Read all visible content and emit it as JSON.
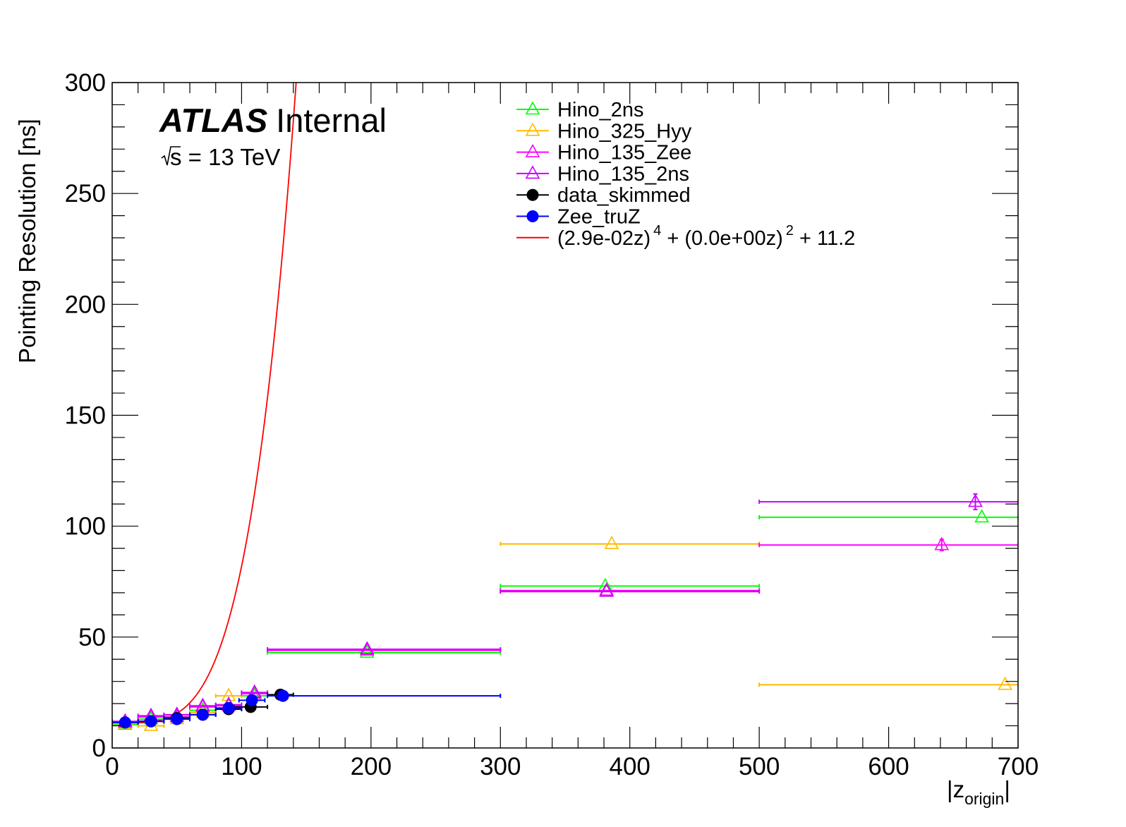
{
  "chart_data": {
    "type": "scatter",
    "title": "",
    "ylabel": "Pointing Resolution [ns]",
    "xlabel": {
      "main": "|z",
      "sub": "origin",
      "close": "|"
    },
    "xlim": [
      0,
      700
    ],
    "ylim": [
      0,
      300
    ],
    "x_ticks": [
      0,
      100,
      200,
      300,
      400,
      500,
      600,
      700
    ],
    "y_ticks": [
      0,
      50,
      100,
      150,
      200,
      250,
      300
    ],
    "x_tick_labels": [
      "0",
      "100",
      "200",
      "300",
      "400",
      "500",
      "600",
      "700"
    ],
    "y_tick_labels": [
      "0",
      "50",
      "100",
      "150",
      "200",
      "250",
      "300"
    ],
    "grid": false,
    "legend_placement": "top-center",
    "annotations": {
      "experiment": "ATLAS",
      "status": "Internal",
      "energy_sqrt": "s",
      "energy_rest": " = 13 TeV"
    },
    "series": [
      {
        "name": "Hino_2ns",
        "color": "#00ff00",
        "marker": "open-triangle",
        "points": [
          {
            "x": 10,
            "y": 10.5,
            "xerr": 10
          },
          {
            "x": 30,
            "y": 13.0,
            "xerr": 10
          },
          {
            "x": 50,
            "y": 14.8,
            "xerr": 10
          },
          {
            "x": 70,
            "y": 17.0,
            "xerr": 10
          },
          {
            "x": 90,
            "y": 19.5,
            "xerr": 10
          },
          {
            "x": 110,
            "y": 23.5,
            "xerr": 10
          },
          {
            "x": 197,
            "y": 43.0,
            "xlo": 120,
            "xhi": 300
          },
          {
            "x": 381,
            "y": 73.0,
            "xlo": 300,
            "xhi": 500
          },
          {
            "x": 672,
            "y": 104.0,
            "xlo": 500,
            "xhi": 700
          }
        ]
      },
      {
        "name": "Hino_325_Hyy",
        "color": "#ffbb00",
        "marker": "open-triangle",
        "points": [
          {
            "x": 10,
            "y": 11.0,
            "xerr": 10
          },
          {
            "x": 30,
            "y": 10.0,
            "xerr": 10
          },
          {
            "x": 50,
            "y": 13.0,
            "xerr": 10
          },
          {
            "x": 70,
            "y": 16.0,
            "xerr": 10
          },
          {
            "x": 90,
            "y": 23.5,
            "xerr": 10
          },
          {
            "x": 110,
            "y": 24.5,
            "xerr": 10
          },
          {
            "x": 386,
            "y": 92.0,
            "xlo": 300,
            "xhi": 500
          },
          {
            "x": 690,
            "y": 28.5,
            "xlo": 500,
            "xhi": 700
          }
        ]
      },
      {
        "name": "Hino_135_Zee",
        "color": "#ff00ff",
        "marker": "open-triangle",
        "points": [
          {
            "x": 10,
            "y": 11.5,
            "xerr": 10
          },
          {
            "x": 30,
            "y": 14.0,
            "xerr": 10
          },
          {
            "x": 50,
            "y": 14.0,
            "xerr": 10
          },
          {
            "x": 70,
            "y": 18.5,
            "xerr": 10
          },
          {
            "x": 90,
            "y": 19.0,
            "xerr": 10
          },
          {
            "x": 110,
            "y": 24.5,
            "xerr": 10
          },
          {
            "x": 197,
            "y": 44.0,
            "xlo": 120,
            "xhi": 300
          },
          {
            "x": 382,
            "y": 71.0,
            "xlo": 300,
            "xhi": 500
          },
          {
            "x": 641,
            "y": 91.5,
            "xlo": 500,
            "xhi": 700,
            "yerr": 2.5
          }
        ]
      },
      {
        "name": "Hino_135_2ns",
        "color": "#cc00ff",
        "marker": "open-triangle",
        "points": [
          {
            "x": 10,
            "y": 12.0,
            "xerr": 10
          },
          {
            "x": 30,
            "y": 14.5,
            "xerr": 10
          },
          {
            "x": 50,
            "y": 15.0,
            "xerr": 10
          },
          {
            "x": 70,
            "y": 19.0,
            "xerr": 10
          },
          {
            "x": 90,
            "y": 19.5,
            "xerr": 10
          },
          {
            "x": 110,
            "y": 25.0,
            "xerr": 10
          },
          {
            "x": 197,
            "y": 44.5,
            "xlo": 120,
            "xhi": 300
          },
          {
            "x": 382,
            "y": 70.5,
            "xlo": 300,
            "xhi": 500
          },
          {
            "x": 667,
            "y": 111.0,
            "xlo": 500,
            "xhi": 700,
            "yerr": 3.5
          }
        ]
      },
      {
        "name": "data_skimmed",
        "color": "#000000",
        "marker": "filled-circle",
        "points": [
          {
            "x": 10,
            "y": 11.5,
            "xerr": 10
          },
          {
            "x": 30,
            "y": 12.0,
            "xerr": 10
          },
          {
            "x": 50,
            "y": 13.5,
            "xerr": 10
          },
          {
            "x": 70,
            "y": 15.0,
            "xerr": 10
          },
          {
            "x": 90,
            "y": 17.5,
            "xerr": 10
          },
          {
            "x": 107,
            "y": 18.5,
            "xerr": 13
          },
          {
            "x": 130,
            "y": 24.0,
            "xerr": 10
          }
        ]
      },
      {
        "name": "Zee_truZ",
        "color": "#0000ff",
        "marker": "filled-circle",
        "points": [
          {
            "x": 10,
            "y": 11.5,
            "xerr": 10
          },
          {
            "x": 30,
            "y": 12.0,
            "xerr": 10
          },
          {
            "x": 50,
            "y": 13.0,
            "xerr": 10
          },
          {
            "x": 70,
            "y": 15.0,
            "xerr": 10
          },
          {
            "x": 90,
            "y": 18.0,
            "xerr": 10
          },
          {
            "x": 108,
            "y": 21.5,
            "xerr": 10
          },
          {
            "x": 132,
            "y": 23.5,
            "xlo": 120,
            "xhi": 300
          }
        ]
      }
    ],
    "fit": {
      "color": "#ff0000",
      "legend_parts": [
        "(2.9e-02z)",
        "4",
        " + (0.0e+00z)",
        "2",
        " + 11.2"
      ],
      "a": 0.029,
      "b": 0.0,
      "c": 11.2
    }
  }
}
